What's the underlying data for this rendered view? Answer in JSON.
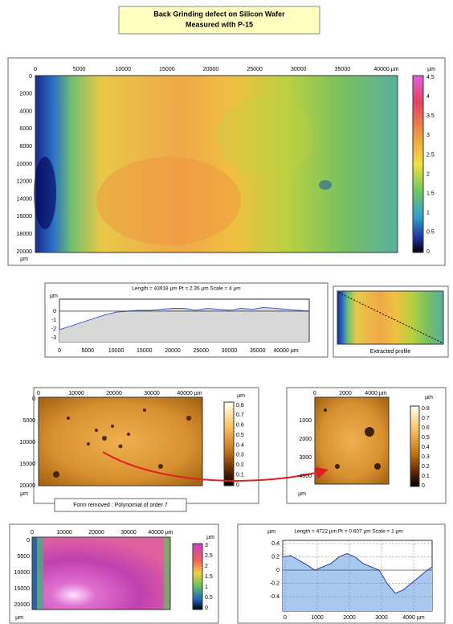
{
  "title": {
    "line1": "Back Grinding defect on Silicon Wafer",
    "line2": "Measured with P-15"
  },
  "main_map": {
    "x_ticks": [
      "0",
      "5000",
      "10000",
      "15000",
      "20000",
      "25000",
      "30000",
      "35000",
      "40000 µm"
    ],
    "y_ticks": [
      "0",
      "2000",
      "4000",
      "6000",
      "8000",
      "10000",
      "12000",
      "14000",
      "16000",
      "18000",
      "20000"
    ],
    "y_unit": "µm",
    "colorbar_unit": "µm",
    "colorbar_ticks": [
      "4.5",
      "4",
      "3.5",
      "3",
      "2.5",
      "2",
      "1.5",
      "1",
      "0.5",
      "0"
    ]
  },
  "profile": {
    "type": "line",
    "title": "Length = 43918 µm  Pt = 2.35 µm  Scale = 4 µm",
    "y_unit": "µm",
    "x_ticks": [
      "0",
      "5000",
      "10000",
      "15000",
      "20000",
      "25000",
      "30000",
      "35000",
      "40000 µm"
    ],
    "y_ticks": [
      "0",
      "-1",
      "-2",
      "-3"
    ],
    "xlim": [
      0,
      44000
    ],
    "ylim": [
      -3.3,
      1.3
    ],
    "x": [
      0,
      2000,
      4000,
      6000,
      8000,
      10000,
      12000,
      14000,
      16000,
      18000,
      20000,
      22000,
      24000,
      26000,
      28000,
      30000,
      32000,
      34000,
      36000,
      38000,
      40000,
      42000,
      43918
    ],
    "values": [
      -2.0,
      -1.6,
      -1.2,
      -0.8,
      -0.4,
      -0.1,
      0.0,
      0.1,
      0.1,
      0.2,
      0.3,
      0.3,
      0.1,
      0.3,
      0.2,
      0.1,
      0.3,
      0.2,
      0.4,
      0.3,
      0.2,
      0.1,
      0.0
    ]
  },
  "thumbnail": {
    "caption": "Extracted profile"
  },
  "filtered_map": {
    "x_ticks": [
      "0",
      "10000",
      "20000",
      "30000",
      "40000 µm"
    ],
    "y_ticks": [
      "0",
      "5000",
      "10000",
      "15000",
      "20000"
    ],
    "y_unit": "µm",
    "colorbar_unit": "µm",
    "colorbar_ticks": [
      "0.8",
      "0.7",
      "0.6",
      "0.5",
      "0.4",
      "0.3",
      "0.2",
      "0.1",
      "0"
    ],
    "caption": "Form removed : Polynomial of order 7"
  },
  "zoom_map": {
    "x_ticks": [
      "0",
      "2000",
      "4000 µm"
    ],
    "y_ticks": [
      "1000",
      "2000",
      "3000",
      "4000"
    ],
    "y_unit": "µm",
    "colorbar_unit": "µm",
    "colorbar_ticks": [
      "0.8",
      "0.7",
      "0.6",
      "0.5",
      "0.4",
      "0.3",
      "0.2",
      "0.1",
      "0"
    ]
  },
  "form_map": {
    "x_ticks": [
      "0",
      "10000",
      "20000",
      "30000",
      "40000 µm"
    ],
    "y_ticks": [
      "0",
      "5000",
      "10000",
      "15000",
      "20000"
    ],
    "y_unit": "µm",
    "colorbar_unit": "µm",
    "colorbar_ticks": [
      "3",
      "2.5",
      "2",
      "1.5",
      "1",
      "0.5",
      "0"
    ]
  },
  "zoom_profile": {
    "type": "line",
    "title": "Length = 4722 µm  Pt = 0.607 µm  Scale = 1 µm",
    "y_unit": "µm",
    "x_ticks": [
      "0",
      "1000",
      "2000",
      "3000",
      "4000 µm"
    ],
    "y_ticks": [
      "0.4",
      "0.2",
      "0",
      "-0.2",
      "-0.4"
    ],
    "xlim": [
      0,
      4650
    ],
    "ylim": [
      -0.62,
      0.45
    ],
    "x": [
      0,
      250,
      500,
      750,
      1000,
      1250,
      1500,
      1750,
      2000,
      2250,
      2500,
      2750,
      3000,
      3250,
      3500,
      3750,
      4000,
      4250,
      4500,
      4650
    ],
    "values": [
      0.2,
      0.22,
      0.15,
      0.08,
      0.0,
      0.05,
      0.1,
      0.2,
      0.25,
      0.2,
      0.1,
      0.05,
      0.0,
      -0.2,
      -0.35,
      -0.3,
      -0.2,
      -0.1,
      0.0,
      0.05
    ]
  }
}
